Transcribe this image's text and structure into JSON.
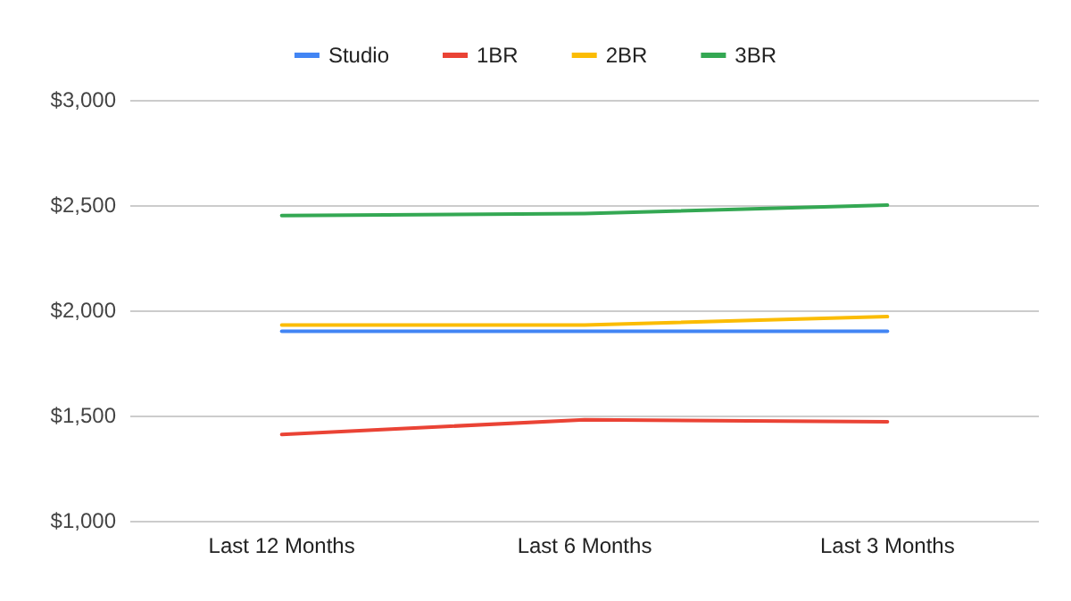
{
  "chart_data": {
    "type": "line",
    "categories": [
      "Last 12 Months",
      "Last 6 Months",
      "Last 3 Months"
    ],
    "series": [
      {
        "name": "Studio",
        "color": "#4285f4",
        "values": [
          1900,
          1900,
          1900
        ]
      },
      {
        "name": "1BR",
        "color": "#ea4335",
        "values": [
          1410,
          1480,
          1470
        ]
      },
      {
        "name": "2BR",
        "color": "#fbbc04",
        "values": [
          1930,
          1930,
          1970
        ]
      },
      {
        "name": "3BR",
        "color": "#34a853",
        "values": [
          2450,
          2460,
          2500
        ]
      }
    ],
    "ylim": [
      1000,
      3000
    ],
    "yticks": [
      {
        "value": 1000,
        "label": "$1,000"
      },
      {
        "value": 1500,
        "label": "$1,500"
      },
      {
        "value": 2000,
        "label": "$2,000"
      },
      {
        "value": 2500,
        "label": "$2,500"
      },
      {
        "value": 3000,
        "label": "$3,000"
      }
    ],
    "grid": "y",
    "legend": "top",
    "marker": "none",
    "line_style": "solid"
  }
}
